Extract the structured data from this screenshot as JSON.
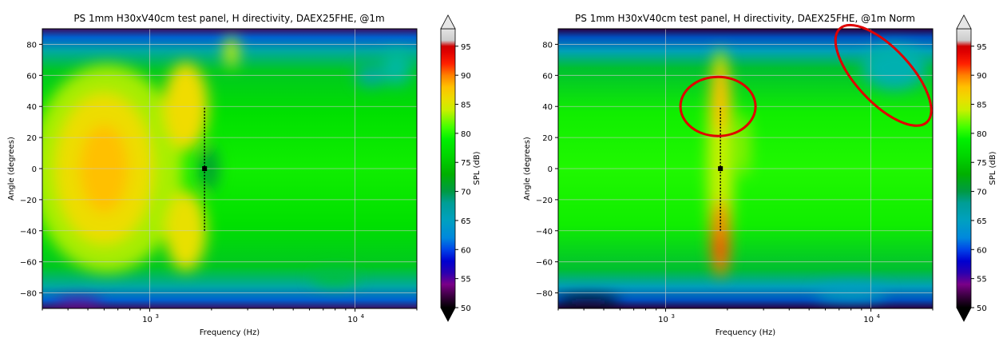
{
  "chart_data": [
    {
      "type": "heatmap",
      "title": "PS 1mm H30xV40cm test panel, H directivity, DAEX25FHE, @1m",
      "xlabel": "Frequency (Hz)",
      "ylabel": "Angle (degrees)",
      "xscale": "log",
      "xlim": [
        300,
        20000
      ],
      "ylim": [
        -90,
        90
      ],
      "x_ticks": [
        {
          "value": 1000,
          "base": "10",
          "exp": "3"
        },
        {
          "value": 10000,
          "base": "10",
          "exp": "4"
        }
      ],
      "y_ticks": [
        -80,
        -60,
        -40,
        -20,
        0,
        20,
        40,
        60,
        80
      ],
      "grid": true,
      "colorbar": {
        "label": "SPL (dB)",
        "range": [
          50,
          98
        ],
        "ticks": [
          50,
          55,
          60,
          65,
          70,
          75,
          80,
          85,
          90,
          95
        ]
      },
      "marker": {
        "frequency": 1850,
        "angle": 0,
        "line_from": -40,
        "line_to": 40
      },
      "features": [
        {
          "desc": "broad low-frequency lobe",
          "freq": 600,
          "angle": 0,
          "spl": 87
        },
        {
          "desc": "lobe",
          "freq": 1500,
          "angle": 40,
          "spl": 85
        },
        {
          "desc": "lobe",
          "freq": 1500,
          "angle": -40,
          "spl": 84
        },
        {
          "desc": "dip",
          "freq": 1900,
          "angle": 0,
          "spl": 74
        },
        {
          "desc": "narrow lobe",
          "freq": 2500,
          "angle": 75,
          "spl": 83
        }
      ],
      "annotations": []
    },
    {
      "type": "heatmap",
      "title": "PS 1mm H30xV40cm test panel, H directivity, DAEX25FHE, @1m Norm",
      "xlabel": "Frequency (Hz)",
      "ylabel": "Angle (degrees)",
      "xscale": "log",
      "xlim": [
        300,
        20000
      ],
      "ylim": [
        -90,
        90
      ],
      "x_ticks": [
        {
          "value": 1000,
          "base": "10",
          "exp": "3"
        },
        {
          "value": 10000,
          "base": "10",
          "exp": "4"
        }
      ],
      "y_ticks": [
        -80,
        -60,
        -40,
        -20,
        0,
        20,
        40,
        60,
        80
      ],
      "grid": true,
      "colorbar": {
        "label": "SPL (dB)",
        "range": [
          50,
          98
        ],
        "ticks": [
          50,
          55,
          60,
          65,
          70,
          75,
          80,
          85,
          90,
          95
        ]
      },
      "marker": {
        "frequency": 1850,
        "angle": 0,
        "line_from": -40,
        "line_to": 40
      },
      "features": [
        {
          "desc": "lobe",
          "freq": 1850,
          "angle": 45,
          "spl": 88
        },
        {
          "desc": "lobe",
          "freq": 1850,
          "angle": -45,
          "spl": 90
        },
        {
          "desc": "dip",
          "freq": 1900,
          "angle": 0,
          "spl": 80
        }
      ],
      "annotations": [
        {
          "shape": "ellipse",
          "color": "#e00000",
          "freq": 1800,
          "angle": 40
        },
        {
          "shape": "ellipse",
          "color": "#e00000",
          "freq": 11500,
          "angle": 60
        }
      ]
    }
  ]
}
